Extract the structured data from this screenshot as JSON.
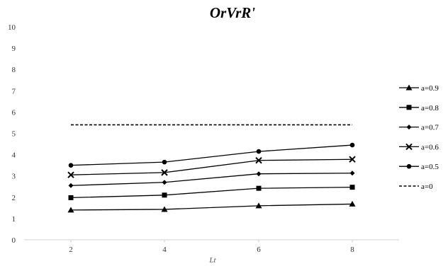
{
  "chart_data": {
    "type": "line",
    "title": "OrVrR'",
    "xlabel": "Lt",
    "ylabel": "",
    "categories": [
      "2",
      "4",
      "6",
      "8"
    ],
    "ylim": [
      0,
      10
    ],
    "yticks": [
      "0",
      "1",
      "2",
      "3",
      "4",
      "5",
      "6",
      "7",
      "8",
      "9",
      "10"
    ],
    "grid": false,
    "legend_position": "right",
    "series": [
      {
        "name": "a=0.9",
        "marker": "triangle",
        "dashed": false,
        "values": [
          1.4,
          1.43,
          1.6,
          1.68
        ]
      },
      {
        "name": "a=0.8",
        "marker": "square",
        "dashed": false,
        "values": [
          1.98,
          2.1,
          2.42,
          2.47
        ]
      },
      {
        "name": "a=0.7",
        "marker": "diamond",
        "dashed": false,
        "values": [
          2.55,
          2.7,
          3.1,
          3.13
        ]
      },
      {
        "name": "a=0.6",
        "marker": "x",
        "dashed": false,
        "values": [
          3.05,
          3.16,
          3.73,
          3.78
        ]
      },
      {
        "name": "a=0.5",
        "marker": "circle",
        "dashed": false,
        "values": [
          3.5,
          3.65,
          4.15,
          4.45
        ]
      },
      {
        "name": "a=0",
        "marker": "none",
        "dashed": true,
        "values": [
          5.4,
          5.4,
          5.4,
          5.4
        ]
      }
    ],
    "colors": {
      "line": "#000000",
      "axis": "#d0d0d0"
    }
  }
}
